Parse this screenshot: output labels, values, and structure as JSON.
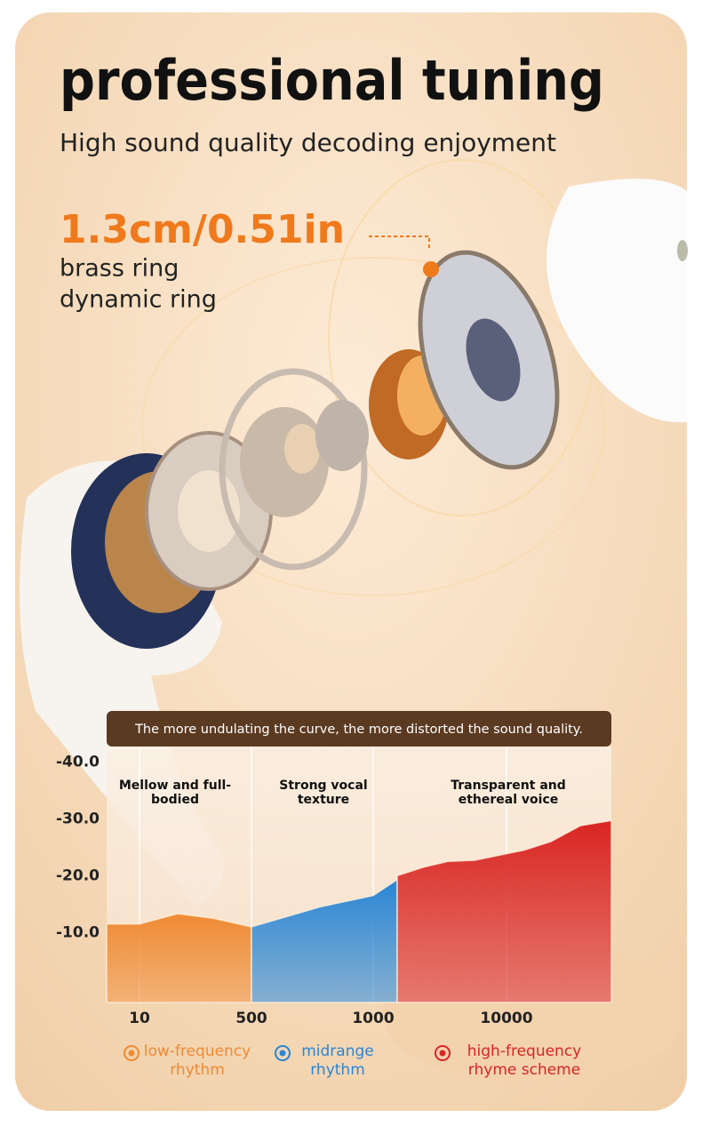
{
  "header": {
    "title": "professional tuning",
    "subtitle": "High sound quality decoding enjoyment",
    "size": "1.3cm/0.51in",
    "lines": [
      "brass ring",
      "dynamic ring"
    ]
  },
  "chart_data": {
    "type": "area",
    "title": "The more undulating the curve, the more distorted the sound quality.",
    "annotations": [
      "Mellow and full-bodied",
      "Strong vocal texture",
      "Transparent and ethereal voice"
    ],
    "ylim": [
      2.3,
      -42.7
    ],
    "yticks": [
      {
        "value": -40,
        "label": "-40.0"
      },
      {
        "value": -30,
        "label": "-30.0"
      },
      {
        "value": -20,
        "label": "-20.0"
      },
      {
        "value": -10,
        "label": "-10.0"
      }
    ],
    "xticks": [
      10,
      500,
      1000,
      10000
    ],
    "grid": true,
    "series": [
      {
        "name": "low-frequency rhythm",
        "color": "#ef8a33",
        "x": [
          10,
          177,
          333,
          500
        ],
        "values": [
          -11.5,
          -13.3,
          -12.5,
          -11
        ]
      },
      {
        "name": "midrange rhythm",
        "color": "#2a86d4",
        "x": [
          500,
          781,
          1000,
          2620
        ],
        "values": [
          -11,
          -14.5,
          -16.5,
          -19.3
        ]
      },
      {
        "name": "high-frequency rhyme scheme",
        "color": "#d92522",
        "x": [
          2620,
          4420,
          6040,
          7840,
          11200,
          13000,
          15000,
          17080
        ],
        "values": [
          -20,
          -21.5,
          -22.5,
          -22.7,
          -24.5,
          -26,
          -28.8,
          -29.7
        ]
      }
    ]
  }
}
